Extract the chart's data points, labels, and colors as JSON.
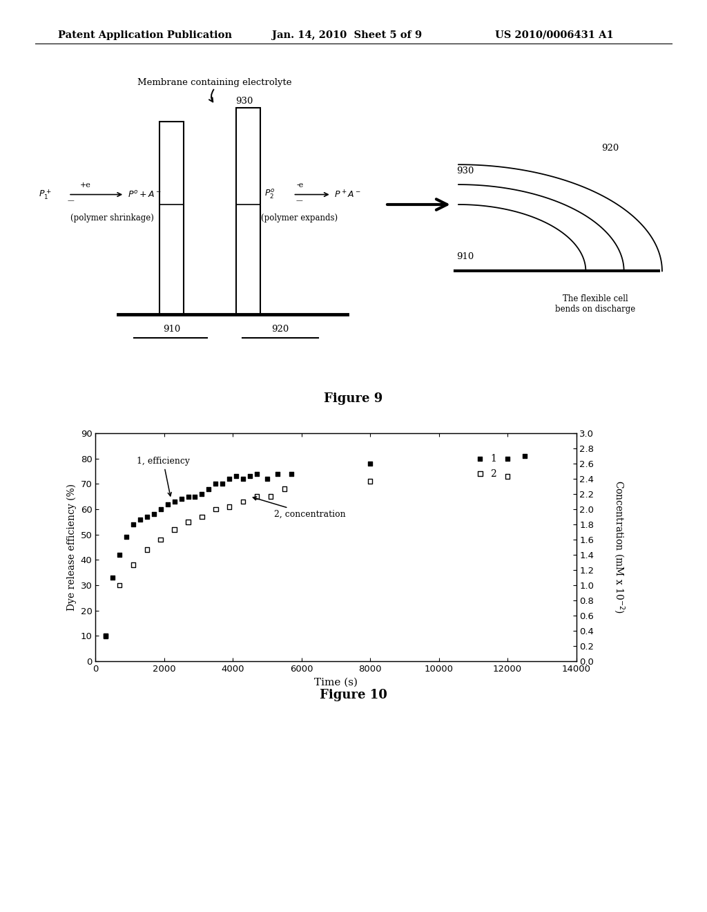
{
  "header_left": "Patent Application Publication",
  "header_mid": "Jan. 14, 2010  Sheet 5 of 9",
  "header_right": "US 2010/0006431 A1",
  "figure9_caption": "Figure 9",
  "figure10_caption": "Figure 10",
  "bg_color": "#ffffff",
  "text_color": "#000000",
  "series1_x": [
    300,
    500,
    700,
    900,
    1100,
    1300,
    1500,
    1700,
    1900,
    2100,
    2300,
    2500,
    2700,
    2900,
    3100,
    3300,
    3500,
    3700,
    3900,
    4100,
    4300,
    4500,
    4700,
    5000,
    5300,
    5700,
    8000,
    12000,
    12500
  ],
  "series1_y": [
    10,
    33,
    42,
    49,
    54,
    56,
    57,
    58,
    60,
    62,
    63,
    64,
    65,
    65,
    66,
    68,
    70,
    70,
    72,
    73,
    72,
    73,
    74,
    72,
    74,
    74,
    78,
    80,
    81
  ],
  "series2_x": [
    300,
    700,
    1100,
    1500,
    1900,
    2300,
    2700,
    3100,
    3500,
    3900,
    4300,
    4700,
    5100,
    5500,
    8000,
    12000
  ],
  "series2_y": [
    10,
    30,
    38,
    44,
    48,
    52,
    55,
    57,
    60,
    61,
    63,
    65,
    65,
    68,
    71,
    73
  ],
  "xlim": [
    0,
    14000
  ],
  "ylim": [
    0,
    90
  ],
  "y2lim": [
    0.0,
    3.0
  ],
  "xlabel": "Time (s)",
  "ylabel": "Dye release efficiency (%)",
  "xticks": [
    0,
    2000,
    4000,
    6000,
    8000,
    10000,
    12000,
    14000
  ],
  "yticks": [
    0,
    10,
    20,
    30,
    40,
    50,
    60,
    70,
    80,
    90
  ],
  "y2ticks": [
    0.0,
    0.2,
    0.4,
    0.6,
    0.8,
    1.0,
    1.2,
    1.4,
    1.6,
    1.8,
    2.0,
    2.2,
    2.4,
    2.6,
    2.8,
    3.0
  ]
}
